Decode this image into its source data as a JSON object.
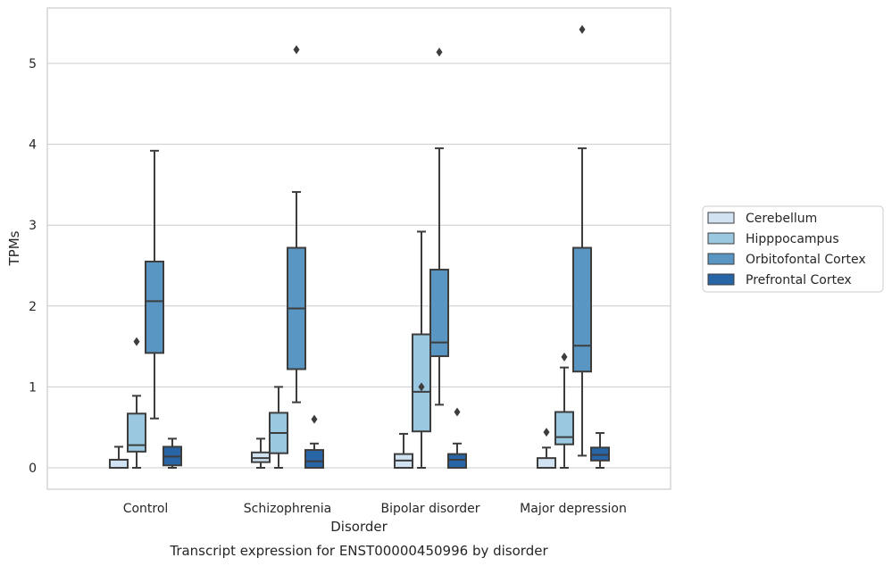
{
  "caption": "Transcript expression for ENST00000450996 by disorder",
  "chart_data": {
    "type": "box",
    "xlabel": "Disorder",
    "ylabel": "TPMs",
    "ylim": [
      -0.27,
      5.7
    ],
    "yticks": [
      0,
      1,
      2,
      3,
      4,
      5
    ],
    "grid": "horizontal",
    "legend_position": "right",
    "categories": [
      "Control",
      "Schizophrenia",
      "Bipolar disorder",
      "Major depression"
    ],
    "series": [
      {
        "name": "Cerebellum",
        "color": "#d1e2f2",
        "boxes": [
          {
            "whislo": 0,
            "q1": 0,
            "med": 0.1,
            "q3": 0.1,
            "whishi": 0.26,
            "fliers": []
          },
          {
            "whislo": 0,
            "q1": 0.07,
            "med": 0.12,
            "q3": 0.19,
            "whishi": 0.36,
            "fliers": []
          },
          {
            "whislo": 0,
            "q1": 0,
            "med": 0.09,
            "q3": 0.17,
            "whishi": 0.42,
            "fliers": []
          },
          {
            "whislo": 0,
            "q1": 0,
            "med": 0,
            "q3": 0.12,
            "whishi": 0.25,
            "fliers": [
              0.44
            ]
          }
        ]
      },
      {
        "name": "Hipppocampus",
        "color": "#9ac8e0",
        "boxes": [
          {
            "whislo": 0,
            "q1": 0.2,
            "med": 0.28,
            "q3": 0.67,
            "whishi": 0.89,
            "fliers": [
              1.56
            ]
          },
          {
            "whislo": 0,
            "q1": 0.18,
            "med": 0.43,
            "q3": 0.68,
            "whishi": 1.0,
            "fliers": []
          },
          {
            "whislo": 0,
            "q1": 0.45,
            "med": 0.94,
            "q3": 1.65,
            "whishi": 2.92,
            "fliers": [
              1.0
            ]
          },
          {
            "whislo": 0,
            "q1": 0.29,
            "med": 0.38,
            "q3": 0.69,
            "whishi": 1.24,
            "fliers": [
              1.37
            ]
          }
        ]
      },
      {
        "name": "Orbitofontal Cortex",
        "color": "#5a96c4",
        "boxes": [
          {
            "whislo": 0.61,
            "q1": 1.42,
            "med": 2.06,
            "q3": 2.55,
            "whishi": 3.92,
            "fliers": []
          },
          {
            "whislo": 0.81,
            "q1": 1.22,
            "med": 1.97,
            "q3": 2.72,
            "whishi": 3.41,
            "fliers": [
              5.17
            ]
          },
          {
            "whislo": 0.78,
            "q1": 1.38,
            "med": 1.55,
            "q3": 2.45,
            "whishi": 3.95,
            "fliers": [
              5.14
            ]
          },
          {
            "whislo": 0.15,
            "q1": 1.19,
            "med": 1.51,
            "q3": 2.72,
            "whishi": 3.95,
            "fliers": [
              5.42
            ]
          }
        ]
      },
      {
        "name": "Prefrontal Cortex",
        "color": "#2865a6",
        "boxes": [
          {
            "whislo": 0,
            "q1": 0.03,
            "med": 0.14,
            "q3": 0.26,
            "whishi": 0.36,
            "fliers": []
          },
          {
            "whislo": 0,
            "q1": 0,
            "med": 0.08,
            "q3": 0.22,
            "whishi": 0.3,
            "fliers": [
              0.6
            ]
          },
          {
            "whislo": 0,
            "q1": 0,
            "med": 0.1,
            "q3": 0.17,
            "whishi": 0.3,
            "fliers": [
              0.69
            ]
          },
          {
            "whislo": 0,
            "q1": 0.09,
            "med": 0.16,
            "q3": 0.25,
            "whishi": 0.43,
            "fliers": []
          }
        ]
      }
    ]
  }
}
